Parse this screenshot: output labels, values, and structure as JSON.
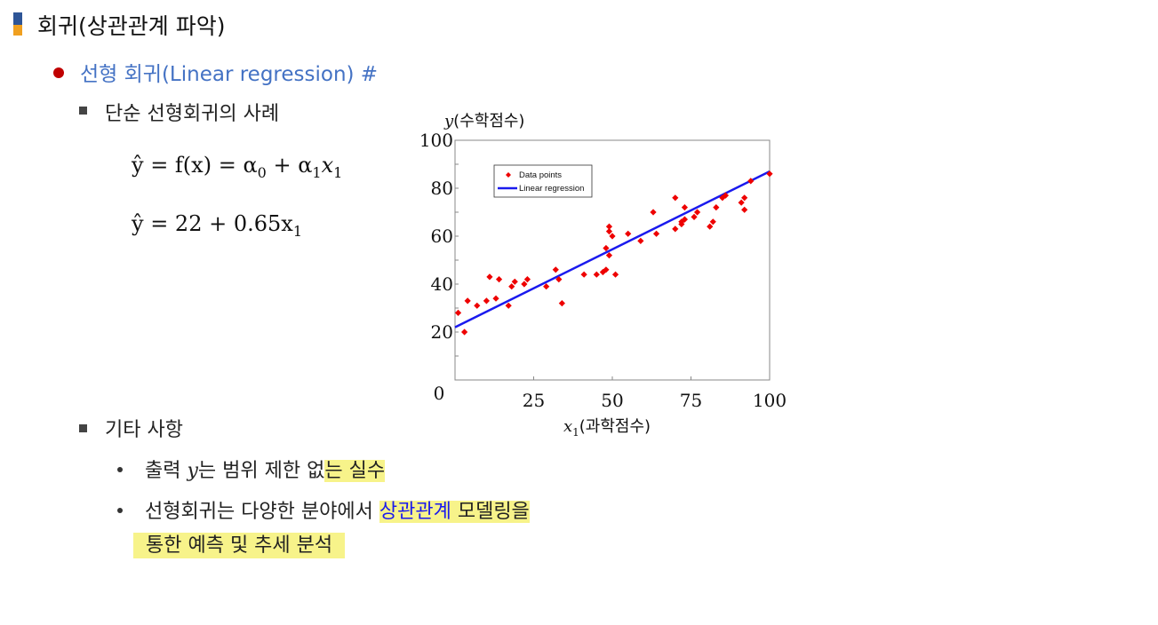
{
  "title": "회귀(상관관계 파악)",
  "subtitle": "선형 회귀(Linear regression) #",
  "section1": {
    "heading": "단순 선형회귀의 사례"
  },
  "equations": {
    "eq1_lhs": "ŷ = f(x) = α",
    "eq1_sub0": "0",
    "eq1_plus": " + α",
    "eq1_sub1": "1",
    "eq1_x": "x",
    "eq1_xsub": "1",
    "eq2_main": "ŷ = 22 + 0.65x",
    "eq2_sub": "1"
  },
  "section2": {
    "heading": "기타 사항",
    "item1_prefix": "출력 ",
    "item1_var": "y",
    "item1_mid": "는 범위 제한 없",
    "item1_hl": "는 실수",
    "item2_line1_a": "선형회귀는 다양한 분야에서 ",
    "item2_line1_blue": "상관관계",
    "item2_line1_b": " 모델링을",
    "item2_line2": "통한 예측 및 추세 분석"
  },
  "chart_data": {
    "type": "scatter",
    "ylabel": "y(수학점수)",
    "xlabel": "x₁(과학점수)",
    "ylabel_var": "y",
    "ylabel_text": "(수학점수)",
    "xlabel_var": "x",
    "xlabel_sub": "1",
    "xlabel_text": "(과학점수)",
    "xlim": [
      0,
      100
    ],
    "ylim": [
      0,
      100
    ],
    "x_ticks": [
      "0",
      "25",
      "50",
      "75",
      "100"
    ],
    "y_ticks": [
      "20",
      "40",
      "60",
      "80",
      "100"
    ],
    "legend": [
      "Data points",
      "Linear regression"
    ],
    "legend_position": "top-left",
    "colors": {
      "points": "#ee0000",
      "line": "#1a1aee"
    },
    "regression": {
      "intercept": 22,
      "slope": 0.65
    },
    "series": [
      {
        "name": "Data points",
        "x": [
          1,
          3,
          4,
          7,
          10,
          11,
          13,
          14,
          17,
          18,
          19,
          22,
          23,
          29,
          32,
          33,
          34,
          41,
          45,
          47,
          48,
          48,
          49,
          49,
          49,
          50,
          51,
          55,
          59,
          63,
          64,
          70,
          70,
          72,
          72,
          73,
          73,
          76,
          77,
          81,
          82,
          83,
          85,
          86,
          91,
          92,
          92,
          94,
          100
        ],
        "y": [
          28,
          20,
          33,
          31,
          33,
          43,
          34,
          42,
          31,
          39,
          41,
          40,
          42,
          39,
          46,
          42,
          32,
          44,
          44,
          45,
          46,
          55,
          52,
          62,
          64,
          60,
          44,
          61,
          58,
          70,
          61,
          63,
          76,
          65,
          66,
          67,
          72,
          68,
          70,
          64,
          66,
          72,
          76,
          77,
          74,
          76,
          71,
          83,
          86
        ]
      }
    ]
  }
}
